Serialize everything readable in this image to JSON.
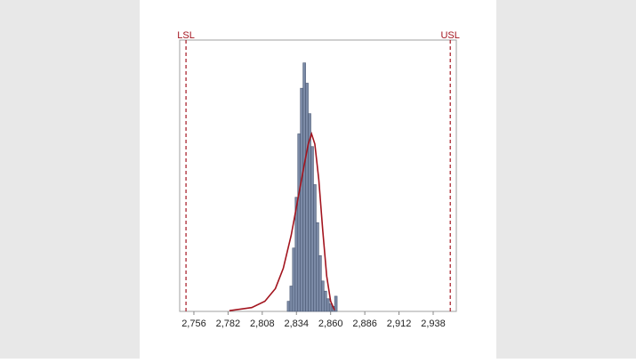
{
  "chart_data": {
    "type": "histogram",
    "bins": [
      2827,
      2829,
      2831,
      2833,
      2835,
      2837,
      2839,
      2841,
      2843,
      2845,
      2847,
      2849,
      2851,
      2853,
      2855,
      2857,
      2859,
      2861,
      2863,
      2865
    ],
    "values": [
      4,
      10,
      25,
      45,
      70,
      88,
      98,
      90,
      78,
      65,
      50,
      35,
      22,
      12,
      8,
      5,
      3,
      2,
      6
    ],
    "color": "#7b8aa6",
    "fit": {
      "x": [
        2783,
        2800,
        2810,
        2818,
        2824,
        2830,
        2835,
        2840,
        2843,
        2845.5,
        2848,
        2851,
        2854,
        2857,
        2860,
        2863
      ],
      "y": [
        0.3,
        1.5,
        4,
        9,
        17,
        30,
        44,
        58,
        66,
        70,
        66,
        52,
        32,
        14,
        4,
        0.5
      ],
      "color": "#a3151f"
    },
    "spec_limits": [
      {
        "label": "LSL",
        "value": 2750
      },
      {
        "label": "USL",
        "value": 2951
      }
    ],
    "spec_color": "#a3151f",
    "xlim": [
      2745.2,
      2955.6
    ],
    "ylim": [
      0,
      107
    ],
    "xticks": [
      {
        "value": 2756,
        "label": "2,756"
      },
      {
        "value": 2782,
        "label": "2,782"
      },
      {
        "value": 2808,
        "label": "2,808"
      },
      {
        "value": 2834,
        "label": "2,834"
      },
      {
        "value": 2860,
        "label": "2,860"
      },
      {
        "value": 2886,
        "label": "2,886"
      },
      {
        "value": 2912,
        "label": "2,912"
      },
      {
        "value": 2938,
        "label": "2,938"
      }
    ]
  }
}
